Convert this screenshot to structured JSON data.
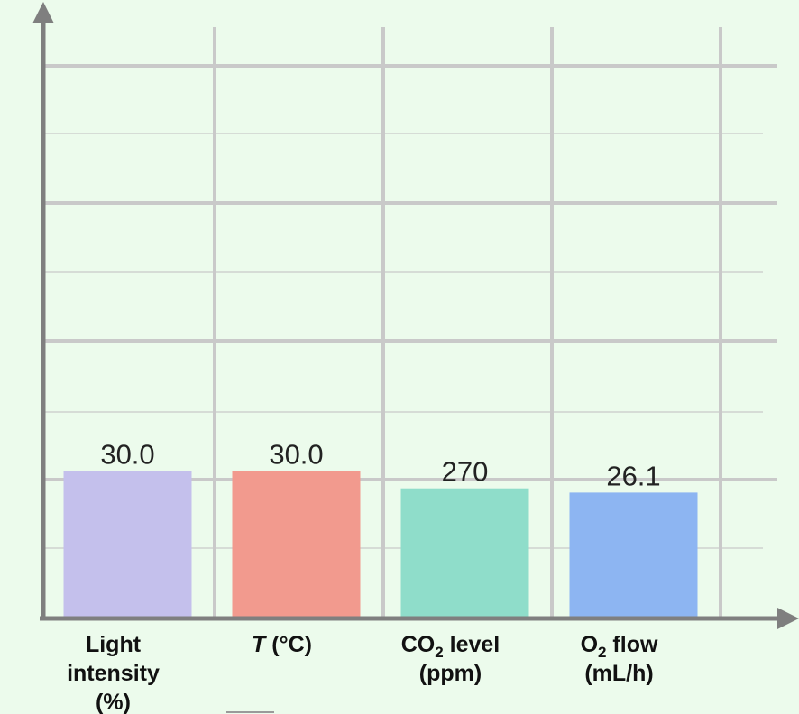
{
  "chart_data": {
    "type": "bar",
    "title": "",
    "xlabel": "",
    "ylabel": "",
    "categories": [
      {
        "lines": [
          [
            {
              "t": "Light"
            }
          ],
          [
            {
              "t": "intensity"
            }
          ],
          [
            {
              "t": "(%)"
            }
          ]
        ]
      },
      {
        "lines": [
          [
            {
              "t": "T",
              "italic": true
            },
            {
              "t": " (°C)"
            }
          ]
        ]
      },
      {
        "lines": [
          [
            {
              "t": "CO"
            },
            {
              "t": "2",
              "sub": true
            },
            {
              "t": " level"
            }
          ],
          [
            {
              "t": "(ppm)"
            }
          ]
        ]
      },
      {
        "lines": [
          [
            {
              "t": "O"
            },
            {
              "t": "2",
              "sub": true
            },
            {
              "t": " flow"
            }
          ],
          [
            {
              "t": "(mL/h)"
            }
          ]
        ]
      }
    ],
    "values": [
      30.0,
      30.0,
      270,
      26.1
    ],
    "value_labels": [
      "30.0",
      "30.0",
      "270",
      "26.1"
    ],
    "display_fraction": [
      0.245,
      0.245,
      0.216,
      0.209
    ],
    "colors": [
      "#c4c0ec",
      "#f29a8e",
      "#8fddca",
      "#8db5f2"
    ],
    "grid": true,
    "axis_color": "#7f7f7f",
    "grid_color": "#c9c9c9"
  }
}
